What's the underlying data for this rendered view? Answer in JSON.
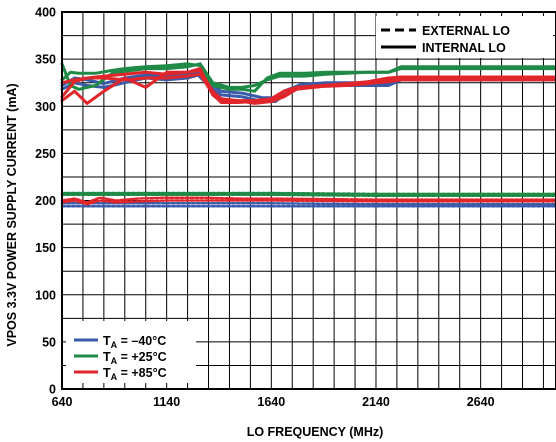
{
  "chart_data": {
    "type": "line",
    "xlabel": "LO FREQUENCY (MHz)",
    "ylabel": "VPOS 3.3V POWER SUPPLY CURRENT (mA)",
    "xlim": [
      640,
      3000
    ],
    "ylim": [
      0,
      400
    ],
    "x_ticks": [
      640,
      1140,
      1640,
      2140,
      2640
    ],
    "y_ticks": [
      0,
      50,
      100,
      150,
      200,
      250,
      300,
      350,
      400
    ],
    "grid": true,
    "style_legend": [
      {
        "label": "EXTERNAL LO",
        "dash": "dashed"
      },
      {
        "label": "INTERNAL LO",
        "dash": "solid"
      }
    ],
    "style_legend_position": "top-right",
    "temp_legend": [
      {
        "prefix": "T",
        "sub": "A",
        "suffix": " = –40°C",
        "color": "#3a5ba9"
      },
      {
        "prefix": "T",
        "sub": "A",
        "suffix": " = +25°C",
        "color": "#1f8a46"
      },
      {
        "prefix": "T",
        "sub": "A",
        "suffix": " = +85°C",
        "color": "#e0262b"
      }
    ],
    "temp_legend_position": "bottom-left",
    "series": [
      {
        "temp": "-40C",
        "lo": "internal",
        "color": "#3a5ba9",
        "x": [
          640,
          700,
          760,
          840,
          940,
          1040,
          1140,
          1240,
          1290,
          1340,
          1400,
          1500,
          1600,
          1660,
          1700,
          1780,
          1900,
          2100,
          2200,
          2260,
          2400,
          2700,
          3000
        ],
        "y": [
          318,
          325,
          322,
          320,
          325,
          330,
          328,
          330,
          333,
          322,
          312,
          310,
          305,
          305,
          312,
          320,
          322,
          322,
          322,
          328,
          328,
          328,
          328
        ]
      },
      {
        "temp": "-40C",
        "lo": "internal",
        "color": "#3a5ba9",
        "x": [
          640,
          700,
          760,
          840,
          940,
          1040,
          1140,
          1240,
          1290,
          1340,
          1400,
          1500,
          1600,
          1660,
          1700,
          1780,
          1900,
          2100,
          2200,
          2260,
          2400,
          2700,
          3000
        ],
        "y": [
          322,
          330,
          328,
          324,
          330,
          333,
          332,
          334,
          336,
          326,
          316,
          314,
          309,
          309,
          316,
          323,
          325,
          325,
          325,
          330,
          330,
          330,
          330
        ]
      },
      {
        "temp": "+25C",
        "lo": "internal",
        "color": "#1f8a46",
        "x": [
          640,
          680,
          720,
          800,
          880,
          940,
          1040,
          1140,
          1240,
          1300,
          1360,
          1440,
          1500,
          1560,
          1620,
          1680,
          1800,
          1900,
          2100,
          2200,
          2260,
          2400,
          2700,
          3000
        ],
        "y": [
          328,
          336,
          335,
          335,
          338,
          340,
          342,
          343,
          345,
          343,
          322,
          318,
          318,
          316,
          330,
          335,
          335,
          336,
          336,
          336,
          340,
          340,
          340,
          340
        ]
      },
      {
        "temp": "+25C",
        "lo": "internal",
        "color": "#1f8a46",
        "x": [
          640,
          680,
          720,
          800,
          880,
          940,
          1040,
          1140,
          1240,
          1300,
          1360,
          1440,
          1500,
          1560,
          1620,
          1680,
          1800,
          1900,
          2100,
          2200,
          2260,
          2400,
          2700,
          3000
        ],
        "y": [
          345,
          322,
          318,
          322,
          335,
          337,
          340,
          340,
          342,
          345,
          325,
          320,
          320,
          322,
          328,
          332,
          332,
          334,
          336,
          336,
          342,
          342,
          342,
          342
        ]
      },
      {
        "temp": "+85C",
        "lo": "internal",
        "color": "#e0262b",
        "x": [
          640,
          700,
          760,
          840,
          940,
          1040,
          1140,
          1240,
          1300,
          1360,
          1400,
          1480,
          1560,
          1640,
          1700,
          1760,
          1880,
          2000,
          2100,
          2200,
          2260,
          2400,
          2700,
          3000
        ],
        "y": [
          306,
          316,
          303,
          316,
          330,
          320,
          336,
          336,
          340,
          312,
          305,
          306,
          303,
          305,
          310,
          318,
          322,
          323,
          324,
          326,
          328,
          328,
          328,
          328
        ]
      },
      {
        "temp": "+85C",
        "lo": "internal",
        "color": "#e0262b",
        "x": [
          640,
          700,
          760,
          840,
          940,
          1040,
          1140,
          1240,
          1300,
          1360,
          1400,
          1480,
          1560,
          1640,
          1700,
          1760,
          1880,
          2000,
          2100,
          2200,
          2260,
          2400,
          2700,
          3000
        ],
        "y": [
          310,
          326,
          330,
          332,
          334,
          336,
          334,
          336,
          338,
          316,
          308,
          306,
          306,
          308,
          316,
          320,
          322,
          324,
          326,
          330,
          331,
          331,
          331,
          331
        ]
      },
      {
        "temp": "+85C",
        "lo": "internal",
        "color": "#e0262b",
        "x": [
          640,
          700,
          760,
          840,
          940,
          1040,
          1140,
          1240,
          1300,
          1360,
          1400,
          1480,
          1560,
          1640,
          1700,
          1760,
          1880,
          2000,
          2100,
          2200,
          2260,
          2400,
          2700,
          3000
        ],
        "y": [
          325,
          328,
          330,
          330,
          328,
          330,
          330,
          332,
          334,
          313,
          304,
          304,
          305,
          305,
          312,
          318,
          321,
          322,
          324,
          328,
          329,
          329,
          329,
          329
        ]
      },
      {
        "temp": "-40C",
        "lo": "external",
        "color": "#3a5ba9",
        "x": [
          640,
          1140,
          1640,
          2140,
          2640,
          3000
        ],
        "y": [
          194,
          194,
          194,
          194,
          194,
          194
        ]
      },
      {
        "temp": "-40C",
        "lo": "external",
        "color": "#3a5ba9",
        "x": [
          640,
          1140,
          1640,
          2140,
          2640,
          3000
        ],
        "y": [
          197,
          197,
          197,
          196,
          196,
          196
        ]
      },
      {
        "temp": "+25C",
        "lo": "external",
        "color": "#1f8a46",
        "x": [
          640,
          1140,
          1640,
          2140,
          2640,
          3000
        ],
        "y": [
          208,
          208,
          208,
          207,
          207,
          207
        ]
      },
      {
        "temp": "+25C",
        "lo": "external",
        "color": "#1f8a46",
        "x": [
          640,
          1140,
          1640,
          2140,
          2640,
          3000
        ],
        "y": [
          206,
          206,
          206,
          205,
          205,
          205
        ]
      },
      {
        "temp": "+85C",
        "lo": "external",
        "color": "#e0262b",
        "x": [
          640,
          700,
          760,
          820,
          900,
          1000,
          1140,
          1300,
          1500,
          1640,
          2140,
          2640,
          3000
        ],
        "y": [
          200,
          202,
          198,
          203,
          200,
          202,
          203,
          203,
          202,
          202,
          201,
          201,
          201
        ]
      },
      {
        "temp": "+85C",
        "lo": "external",
        "color": "#e0262b",
        "x": [
          640,
          700,
          760,
          820,
          900,
          1000,
          1140,
          1300,
          1500,
          1640,
          2140,
          2640,
          3000
        ],
        "y": [
          198,
          200,
          196,
          200,
          198,
          199,
          200,
          200,
          200,
          200,
          199,
          199,
          199
        ]
      }
    ]
  }
}
